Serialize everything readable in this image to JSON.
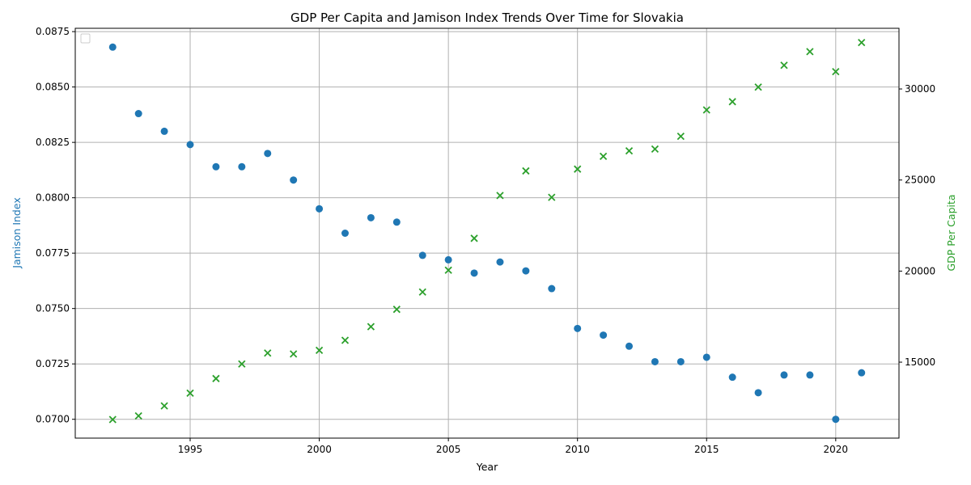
{
  "chart_data": {
    "type": "scatter",
    "title": "GDP Per Capita and Jamison Index Trends Over Time for Slovakia",
    "xlabel": "Year",
    "ylabel_left": "Jamison Index",
    "ylabel_right": "GDP Per Capita",
    "xlim": [
      1990.55,
      2022.45
    ],
    "ylim_left": [
      0.06915,
      0.08765
    ],
    "ylim_right": [
      10830,
      33330
    ],
    "x_ticks": [
      1995,
      2000,
      2005,
      2010,
      2015,
      2020
    ],
    "y_left_ticks": [
      0.07,
      0.0725,
      0.075,
      0.0775,
      0.08,
      0.0825,
      0.085,
      0.0875
    ],
    "y_left_tick_labels": [
      "0.0700",
      "0.0725",
      "0.0750",
      "0.0775",
      "0.0800",
      "0.0825",
      "0.0850",
      "0.0875"
    ],
    "y_right_ticks": [
      15000,
      20000,
      25000,
      30000
    ],
    "y_right_tick_labels": [
      "15000",
      "20000",
      "25000",
      "30000"
    ],
    "grid": true,
    "legend_position": "top-left",
    "x": [
      1992,
      1993,
      1994,
      1995,
      1996,
      1997,
      1998,
      1999,
      2000,
      2001,
      2002,
      2003,
      2004,
      2005,
      2006,
      2007,
      2008,
      2009,
      2010,
      2011,
      2012,
      2013,
      2014,
      2015,
      2016,
      2017,
      2018,
      2019,
      2020,
      2021
    ],
    "series": [
      {
        "axis": "left",
        "marker": "circle",
        "color": "#1f77b4",
        "values": [
          0.0868,
          0.0838,
          0.083,
          0.0824,
          0.0814,
          0.0814,
          0.082,
          0.0808,
          0.0795,
          0.0784,
          0.0791,
          0.0789,
          0.0774,
          0.0772,
          0.0766,
          0.0771,
          0.0767,
          0.0759,
          0.0741,
          0.0738,
          0.0733,
          0.0726,
          0.0726,
          0.0728,
          0.0719,
          0.0712,
          0.072,
          0.072,
          0.07,
          0.0721
        ]
      },
      {
        "axis": "right",
        "marker": "x",
        "color": "#2ca02c",
        "values": [
          11850,
          12050,
          12600,
          13300,
          14100,
          14900,
          15500,
          15450,
          15650,
          16200,
          16950,
          17900,
          18850,
          20050,
          21800,
          24150,
          25500,
          24050,
          25600,
          26300,
          26600,
          26700,
          27400,
          28850,
          29300,
          30100,
          31300,
          32050,
          30950,
          32550
        ]
      }
    ]
  }
}
